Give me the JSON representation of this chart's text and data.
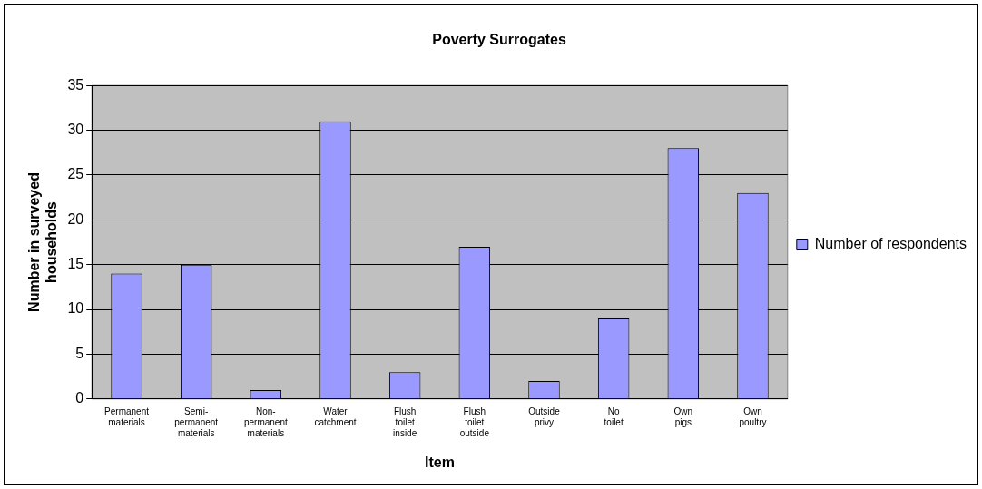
{
  "chart_data": {
    "type": "bar",
    "title": "Poverty Surrogates",
    "xlabel": "Item",
    "ylabel": "Number in surveyed households",
    "categories": [
      "Permanent materials",
      "Semi-permanent materials",
      "Non-permanent materials",
      "Water catchment",
      "Flush toilet inside",
      "Flush toilet outside",
      "Outside privy",
      "No toilet",
      "Own pigs",
      "Own poultry"
    ],
    "series": [
      {
        "name": "Number of respondents",
        "color": "#9999ff",
        "values": [
          14,
          15,
          1,
          31,
          3,
          17,
          2,
          9,
          28,
          23
        ]
      }
    ],
    "ylim": [
      0,
      35
    ],
    "yticks": [
      0,
      5,
      10,
      15,
      20,
      25,
      30,
      35
    ],
    "grid": "y",
    "legend": "right"
  }
}
